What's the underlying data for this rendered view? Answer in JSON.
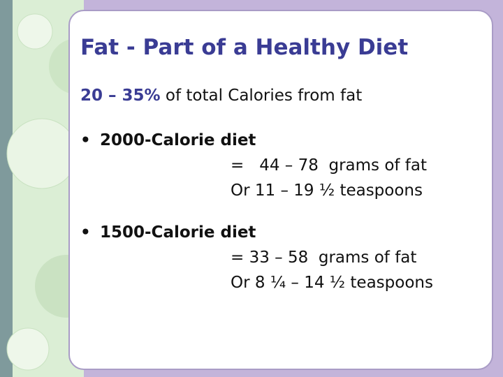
{
  "title": "Fat - Part of a Healthy Diet",
  "intro": {
    "emphasis": "20 – 35%",
    "text": "of total Calories from fat"
  },
  "bullets": [
    {
      "label": "2000-Calorie diet",
      "lines": [
        "=   44 – 78  grams of fat",
        "Or 11 – 19 ½ teaspoons"
      ]
    },
    {
      "label": "1500-Calorie diet",
      "lines": [
        "= 33 – 58  grams of fat",
        "Or 8 ¼ – 14 ½ teaspoons"
      ]
    }
  ]
}
